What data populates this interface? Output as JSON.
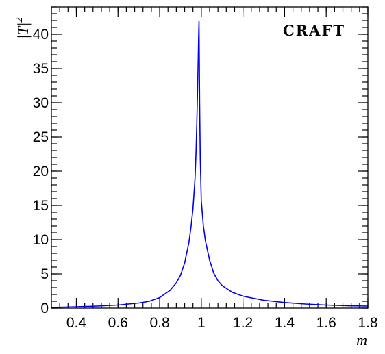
{
  "chart_data": {
    "type": "line",
    "xlabel": "m",
    "ylabel": "|T|",
    "ylabel_superscript": "2",
    "annotation": "CRAFT",
    "xlim": [
      0.28,
      1.8
    ],
    "ylim": [
      0,
      44
    ],
    "x_ticks": [
      0.4,
      0.6,
      0.8,
      1,
      1.2,
      1.4,
      1.6,
      1.8
    ],
    "x_tick_labels": [
      "0.4",
      "0.6",
      "0.8",
      "1",
      "1.2",
      "1.4",
      "1.6",
      "1.8"
    ],
    "y_ticks": [
      0,
      5,
      10,
      15,
      20,
      25,
      30,
      35,
      40
    ],
    "y_tick_labels": [
      "0",
      "5",
      "10",
      "15",
      "20",
      "25",
      "30",
      "35",
      "40"
    ],
    "grid": false,
    "series": [
      {
        "color": "#0000ee",
        "points": [
          [
            0.28,
            0.1
          ],
          [
            0.4,
            0.2
          ],
          [
            0.5,
            0.3
          ],
          [
            0.6,
            0.45
          ],
          [
            0.7,
            0.75
          ],
          [
            0.75,
            1.0
          ],
          [
            0.8,
            1.55
          ],
          [
            0.85,
            2.6
          ],
          [
            0.88,
            3.7
          ],
          [
            0.9,
            4.8
          ],
          [
            0.92,
            6.6
          ],
          [
            0.94,
            9.5
          ],
          [
            0.95,
            11.7
          ],
          [
            0.96,
            14.5
          ],
          [
            0.97,
            19.0
          ],
          [
            0.975,
            23.0
          ],
          [
            0.98,
            29.0
          ],
          [
            0.985,
            36.0
          ],
          [
            0.987,
            39.5
          ],
          [
            0.989,
            42.0
          ],
          [
            0.99,
            38.0
          ],
          [
            0.992,
            30.0
          ],
          [
            0.995,
            22.0
          ],
          [
            1.0,
            15.6
          ],
          [
            1.01,
            12.0
          ],
          [
            1.02,
            9.8
          ],
          [
            1.04,
            7.0
          ],
          [
            1.06,
            5.1
          ],
          [
            1.08,
            4.0
          ],
          [
            1.1,
            3.3
          ],
          [
            1.15,
            2.3
          ],
          [
            1.2,
            1.75
          ],
          [
            1.3,
            1.15
          ],
          [
            1.4,
            0.82
          ],
          [
            1.5,
            0.6
          ],
          [
            1.6,
            0.45
          ],
          [
            1.7,
            0.35
          ],
          [
            1.8,
            0.3
          ]
        ]
      }
    ]
  }
}
